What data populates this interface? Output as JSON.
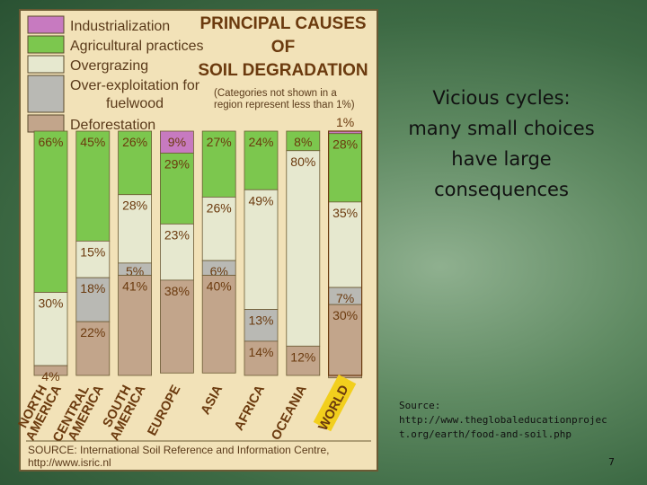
{
  "slide": {
    "title_lines": [
      "Vicious cycles:",
      "many small choices",
      "have large",
      "consequences"
    ],
    "source_label": "Source:",
    "source_url": "http://www.theglobaleducationproject.org/earth/food-and-soil.php",
    "page_number": "7"
  },
  "chart_data": {
    "type": "bar",
    "stacked": true,
    "orientation": "vertical",
    "title_lines": [
      "PRINCIPAL CAUSES",
      "OF",
      "SOIL DEGRADATION"
    ],
    "note": "(Categories not shown in a region represent less than 1%)",
    "source_lines": [
      "SOURCE: International Soil Reference and Information Centre,",
      "http://www.isric.nl"
    ],
    "categories": [
      "NORTH AMERICA",
      "CENTRAL AMERICA",
      "SOUTH AMERICA",
      "EUROPE",
      "ASIA",
      "AFRICA",
      "OCEANIA",
      "WORLD"
    ],
    "category_lines": [
      [
        "NORTH",
        "AMERICA"
      ],
      [
        "CENTRAL",
        "AMERICA"
      ],
      [
        "SOUTH",
        "AMERICA"
      ],
      [
        "EUROPE"
      ],
      [
        "ASIA"
      ],
      [
        "AFRICA"
      ],
      [
        "OCEANIA"
      ],
      [
        "WORLD"
      ]
    ],
    "highlight_category": "WORLD",
    "series": [
      {
        "name": "Industrialization",
        "color": "#c77ac0",
        "values": [
          0,
          0,
          0,
          9,
          0,
          0,
          0,
          1
        ]
      },
      {
        "name": "Agricultural practices",
        "color": "#7cc74e",
        "values": [
          66,
          45,
          26,
          29,
          27,
          24,
          8,
          28
        ]
      },
      {
        "name": "Overgrazing",
        "color": "#e6e8cf",
        "values": [
          30,
          15,
          28,
          23,
          26,
          49,
          80,
          35
        ]
      },
      {
        "name": "Over-exploitation for fuelwood",
        "color": "#b9b9b4",
        "values": [
          0,
          18,
          5,
          0,
          6,
          13,
          0,
          7
        ]
      },
      {
        "name": "Deforestation",
        "color": "#c2a58b",
        "values": [
          4,
          22,
          41,
          38,
          40,
          14,
          12,
          30
        ]
      }
    ],
    "legend": [
      "Industrialization",
      "Agricultural practices",
      "Overgrazing",
      "Over-exploitation for fuelwood",
      "Deforestation"
    ],
    "legend_position": "top-left",
    "legend_lines": [
      [
        "Industrialization"
      ],
      [
        "Agricultural practices"
      ],
      [
        "Overgrazing"
      ],
      [
        "Over-exploitation for",
        "fuelwood"
      ],
      [
        "Deforestation"
      ]
    ],
    "data_labels": [
      [
        "",
        "66%",
        "30%",
        "",
        "4%"
      ],
      [
        "",
        "45%",
        "15%",
        "18%",
        "22%"
      ],
      [
        "",
        "26%",
        "28%",
        "5%",
        "41%"
      ],
      [
        "9%",
        "29%",
        "23%",
        "",
        "38%"
      ],
      [
        "",
        "27%",
        "26%",
        "6%",
        "40%"
      ],
      [
        "",
        "24%",
        "49%",
        "13%",
        "14%"
      ],
      [
        "",
        "8%",
        "80%",
        "",
        "12%"
      ],
      [
        "1%",
        "28%",
        "35%",
        "7%",
        "30%"
      ]
    ],
    "ylim": [
      0,
      100
    ],
    "units": "%"
  }
}
